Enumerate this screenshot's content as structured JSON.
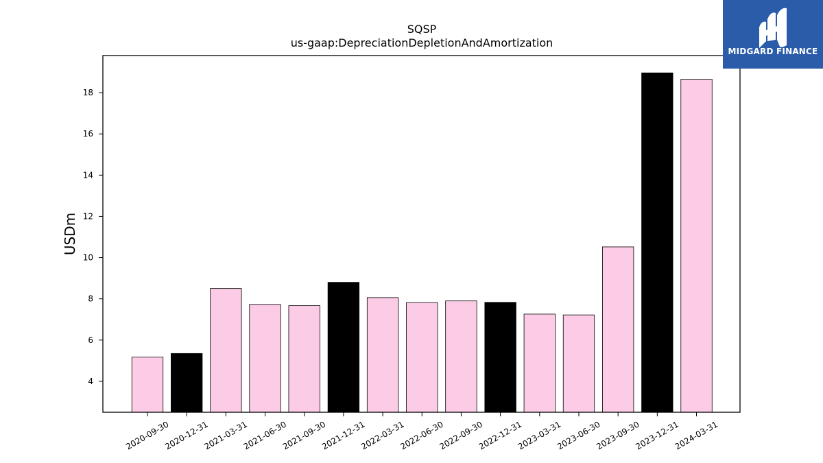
{
  "chart_data": {
    "type": "bar",
    "title": "SQSP",
    "subtitle": "us-gaap:DepreciationDepletionAndAmortization",
    "xlabel": "",
    "ylabel": "USDm",
    "categories": [
      "2020-09-30",
      "2020-12-31",
      "2021-03-31",
      "2021-06-30",
      "2021-09-30",
      "2021-12-31",
      "2022-03-31",
      "2022-06-30",
      "2022-09-30",
      "2022-12-31",
      "2023-03-31",
      "2023-06-30",
      "2023-09-30",
      "2023-12-31",
      "2024-03-31"
    ],
    "values": [
      5.18,
      5.35,
      8.5,
      7.73,
      7.67,
      8.8,
      8.06,
      7.82,
      7.9,
      7.83,
      7.26,
      7.22,
      10.52,
      18.96,
      18.65
    ],
    "bar_colors": [
      "#fccbe6",
      "#000000",
      "#fccbe6",
      "#fccbe6",
      "#fccbe6",
      "#000000",
      "#fccbe6",
      "#fccbe6",
      "#fccbe6",
      "#000000",
      "#fccbe6",
      "#fccbe6",
      "#fccbe6",
      "#000000",
      "#fccbe6"
    ],
    "ylim": [
      2.5,
      19.8
    ],
    "yticks": [
      4,
      6,
      8,
      10,
      12,
      14,
      16,
      18
    ],
    "grid": false
  },
  "logo": {
    "text": "MIDGARD FINANCE",
    "bg": "#2a5caa"
  }
}
